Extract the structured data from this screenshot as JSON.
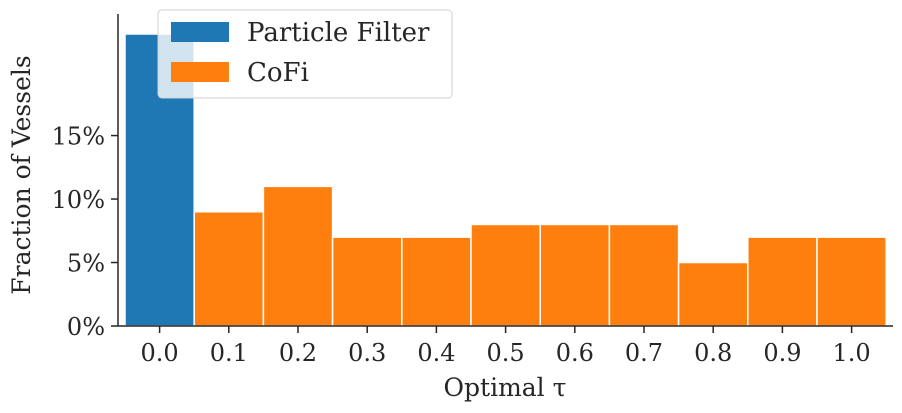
{
  "chart_data": {
    "type": "bar",
    "xlabel": "Optimal τ",
    "ylabel": "Fraction of Vessels",
    "categories": [
      "0.0",
      "0.1",
      "0.2",
      "0.3",
      "0.4",
      "0.5",
      "0.6",
      "0.7",
      "0.8",
      "0.9",
      "1.0"
    ],
    "ylim": [
      0,
      23
    ],
    "yticks": [
      {
        "value": 0,
        "label": "0%"
      },
      {
        "value": 5,
        "label": "5%"
      },
      {
        "value": 10,
        "label": "10%"
      },
      {
        "value": 15,
        "label": "15%"
      }
    ],
    "series": [
      {
        "name": "Particle Filter",
        "color": "#1f77b4",
        "values": [
          23,
          null,
          null,
          null,
          null,
          null,
          null,
          null,
          null,
          null,
          null
        ]
      },
      {
        "name": "CoFi",
        "color": "#ff7f0e",
        "values": [
          null,
          9,
          11,
          7,
          7,
          8,
          8,
          8,
          5,
          7,
          7
        ]
      }
    ],
    "legend_position": "top-left",
    "grid": false
  }
}
